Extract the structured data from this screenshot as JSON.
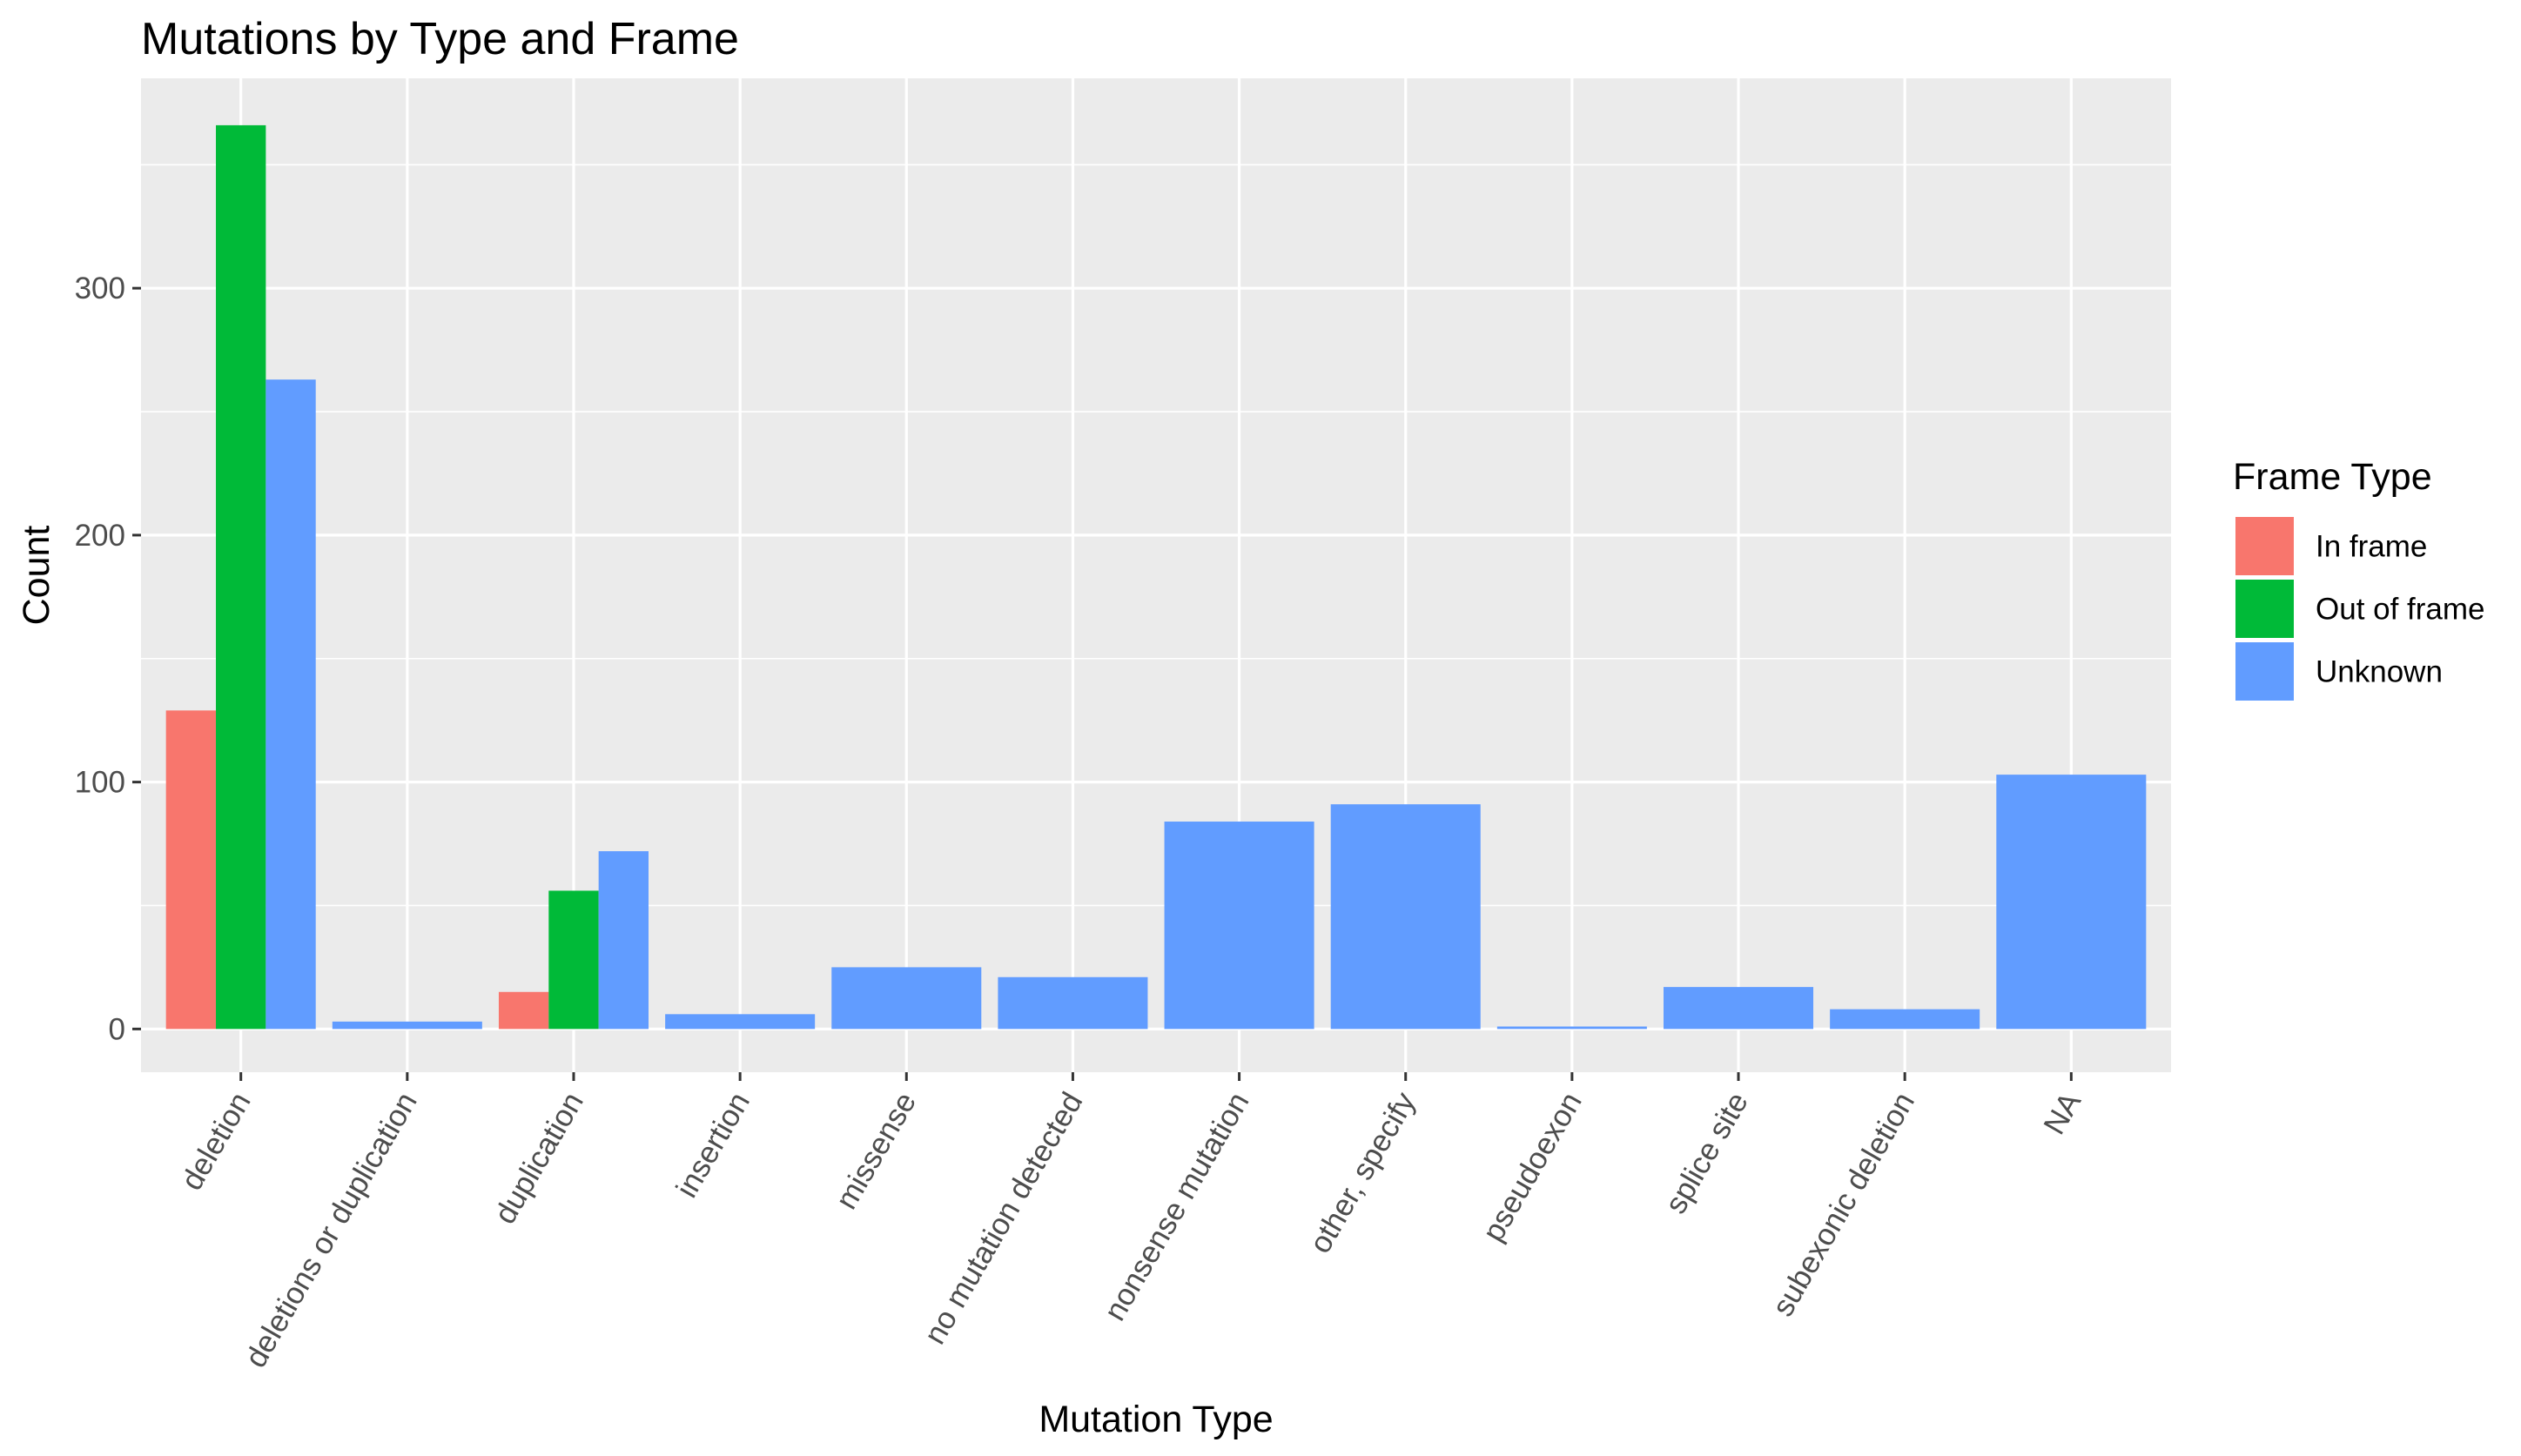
{
  "chart_data": {
    "type": "bar",
    "title": "Mutations by Type and Frame",
    "xlabel": "Mutation Type",
    "ylabel": "Count",
    "ylim": [
      -17.5,
      385
    ],
    "yticks": [
      0,
      100,
      200,
      300
    ],
    "grid": true,
    "legend_position": "right",
    "categories": [
      "deletion",
      "deletions or duplication",
      "duplication",
      "insertion",
      "missense",
      "no mutation detected",
      "nonsense mutation",
      "other, specify",
      "pseudoexon",
      "splice site",
      "subexonic deletion",
      "NA"
    ],
    "legend": {
      "title": "Frame Type",
      "entries": [
        "In frame",
        "Out of frame",
        "Unknown"
      ]
    },
    "series": [
      {
        "name": "In frame",
        "color": "#F8766D",
        "values": [
          129,
          null,
          15,
          null,
          null,
          null,
          null,
          null,
          null,
          null,
          null,
          null
        ]
      },
      {
        "name": "Out of frame",
        "color": "#00BA38",
        "values": [
          366,
          null,
          56,
          null,
          null,
          null,
          null,
          null,
          null,
          null,
          null,
          null
        ]
      },
      {
        "name": "Unknown",
        "color": "#619CFF",
        "values": [
          263,
          3,
          72,
          6,
          25,
          21,
          84,
          91,
          1,
          17,
          8,
          103
        ]
      }
    ]
  }
}
